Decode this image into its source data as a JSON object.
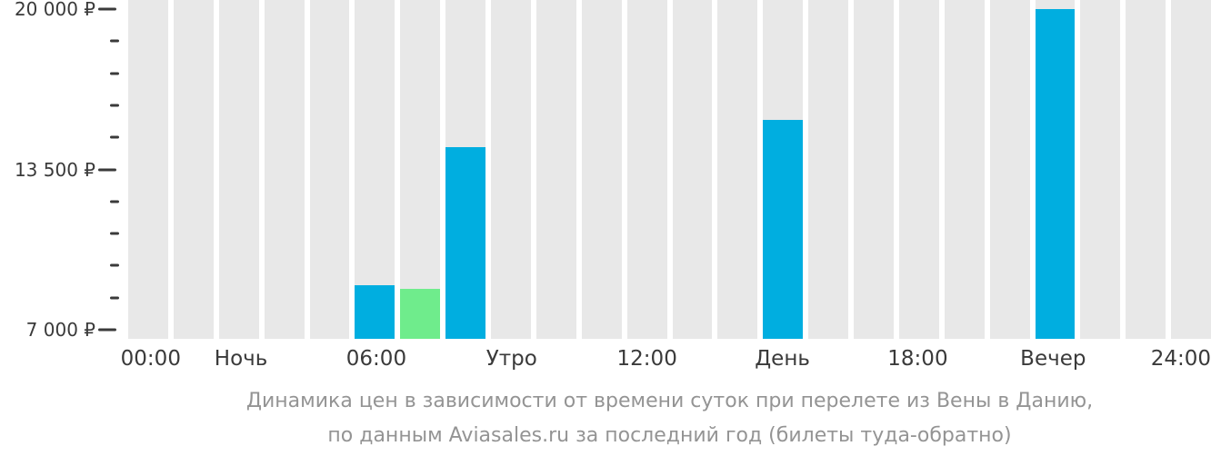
{
  "chart_data": {
    "type": "bar",
    "title": "Динамика цен в зависимости от времени суток при перелете из Вены в Данию,",
    "subtitle": "по данным Aviasales.ru за последний год (билеты туда-обратно)",
    "x_axis": {
      "hours": 24,
      "tick_labels": [
        {
          "label": "00:00",
          "column": 0
        },
        {
          "label": "Ночь",
          "column": 2
        },
        {
          "label": "06:00",
          "column": 5
        },
        {
          "label": "Утро",
          "column": 8
        },
        {
          "label": "12:00",
          "column": 11
        },
        {
          "label": "День",
          "column": 14
        },
        {
          "label": "18:00",
          "column": 17
        },
        {
          "label": "Вечер",
          "column": 20
        },
        {
          "label": "24:00",
          "column": 23
        }
      ]
    },
    "y_axis": {
      "tick_labels": [
        {
          "label": "20 000 ₽",
          "value": 20000
        },
        {
          "label": "13 500 ₽",
          "value": 13500
        },
        {
          "label": "7 000 ₽",
          "value": 7000
        }
      ],
      "minor_ticks_between_majors": 4,
      "range": [
        6630,
        20370
      ]
    },
    "bars": [
      {
        "hour_column": 5,
        "value": 8800,
        "role": "price"
      },
      {
        "hour_column": 6,
        "value": 8650,
        "role": "cheapest"
      },
      {
        "hour_column": 7,
        "value": 14400,
        "role": "price"
      },
      {
        "hour_column": 14,
        "value": 15500,
        "role": "price"
      },
      {
        "hour_column": 20,
        "value": 20000,
        "role": "price"
      }
    ],
    "colors": {
      "price_bar": "#00AEE0",
      "cheapest_bar": "#6FEC8C",
      "empty_column": "#E8E8E8",
      "axis_text": "#3A3A3A",
      "caption_text": "#949494"
    }
  }
}
